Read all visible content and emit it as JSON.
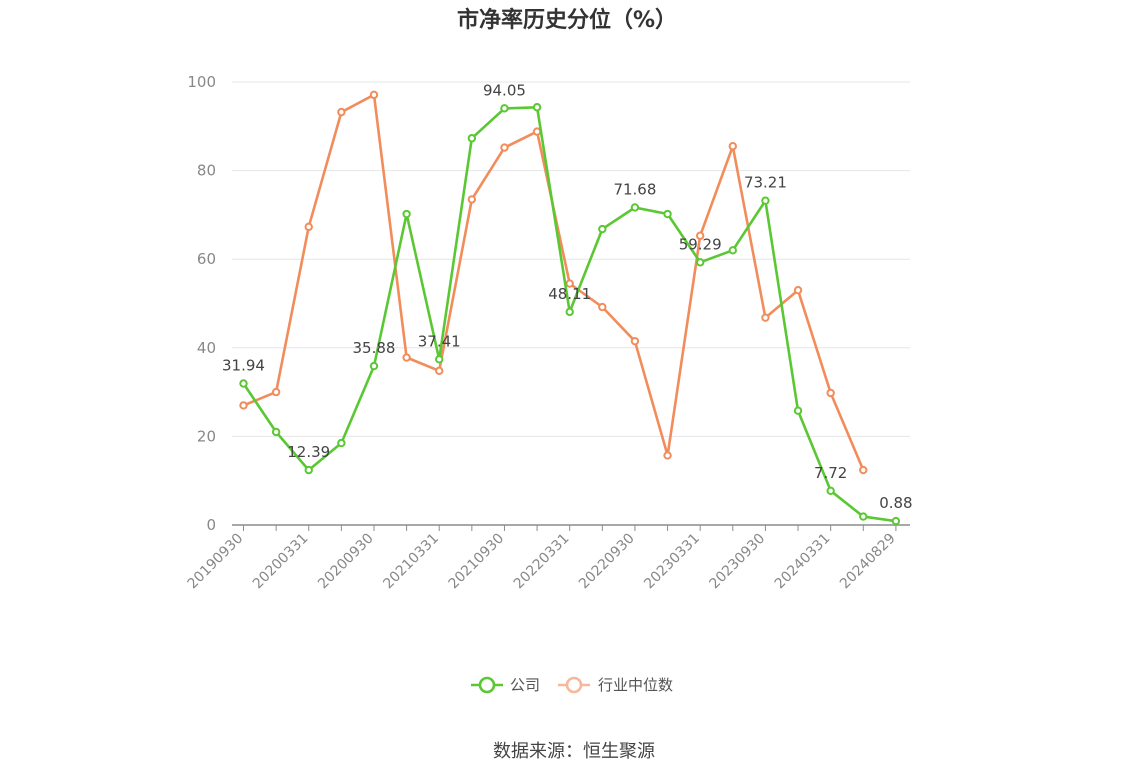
{
  "chart_data": {
    "type": "line",
    "title": "市净率历史分位（%）",
    "source": "数据来源：恒生聚源",
    "ylim": [
      0,
      100
    ],
    "yticks": [
      0,
      20,
      40,
      60,
      80,
      100
    ],
    "grid": true,
    "legend_position": "bottom",
    "x_tick_labels": [
      "20190930",
      "20200331",
      "20200930",
      "20210331",
      "20210930",
      "20220331",
      "20220930",
      "20230331",
      "20230930",
      "20240331",
      "20240829"
    ],
    "series": [
      {
        "name": "公司",
        "color": "#5ac832",
        "values": [
          31.94,
          21.0,
          12.39,
          18.5,
          35.88,
          70.2,
          37.41,
          87.3,
          94.05,
          94.3,
          48.11,
          66.8,
          71.68,
          70.2,
          59.29,
          62.0,
          73.21,
          25.8,
          7.72,
          1.9,
          0.88
        ],
        "labels": [
          "31.94",
          "",
          "12.39",
          "",
          "35.88",
          "",
          "37.41",
          "",
          "94.05",
          "",
          "48.11",
          "",
          "71.68",
          "",
          "59.29",
          "",
          "73.21",
          "",
          "7.72",
          "",
          "0.88"
        ]
      },
      {
        "name": "行业中位数",
        "color": "#f28c5a",
        "values": [
          27.0,
          30.0,
          67.3,
          93.2,
          97.1,
          37.8,
          34.8,
          73.5,
          85.2,
          88.8,
          54.5,
          49.2,
          41.5,
          15.7,
          65.3,
          85.5,
          46.8,
          53.0,
          29.8,
          12.4,
          null
        ]
      }
    ]
  }
}
